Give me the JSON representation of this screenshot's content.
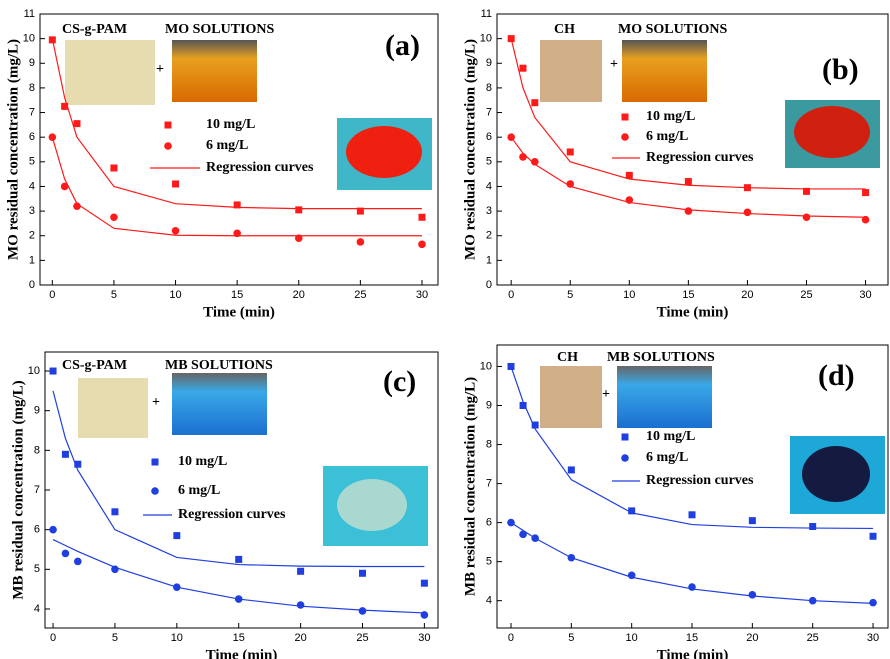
{
  "chart_data": [
    {
      "type": "scatter",
      "x": [
        0,
        1,
        2,
        5,
        10,
        15,
        20,
        25,
        30
      ],
      "xlim": [
        -1,
        31.3
      ],
      "xticks": [
        0,
        5,
        10,
        15,
        20,
        25,
        30
      ],
      "ylim": [
        0,
        11
      ],
      "yticks": [
        0,
        1,
        2,
        3,
        4,
        5,
        6,
        7,
        8,
        9,
        10,
        11
      ],
      "x_label": "Time (min)",
      "y_label": "MO residual concentration (mg/L)",
      "panel_label": "(a)",
      "annotations": [
        "CS-g-PAM",
        "MO SOLUTIONS",
        "+"
      ],
      "series": [
        {
          "name": "10 mg/L",
          "color": "#ff1a1a",
          "marker": "square",
          "values": [
            9.95,
            7.25,
            6.55,
            4.75,
            4.1,
            3.25,
            3.05,
            3.0,
            2.75
          ]
        },
        {
          "name": "6 mg/L",
          "color": "#ff1a1a",
          "marker": "circle",
          "values": [
            6.0,
            4.0,
            3.2,
            2.75,
            2.2,
            2.1,
            1.9,
            1.75,
            1.65
          ]
        },
        {
          "name": "Regression curves",
          "color": "#ff1a1a",
          "marker": "line",
          "curves": [
            [
              10,
              7.6,
              6.0,
              4.0,
              3.3,
              3.15,
              3.1,
              3.1,
              3.1
            ],
            [
              6,
              4.3,
              3.3,
              2.3,
              2.02,
              2.0,
              2.0,
              2.0,
              2.0
            ]
          ]
        }
      ]
    },
    {
      "type": "scatter",
      "x": [
        0,
        1,
        2,
        5,
        10,
        15,
        20,
        25,
        30
      ],
      "xlim": [
        -1.2,
        31.9
      ],
      "xticks": [
        0,
        5,
        10,
        15,
        20,
        25,
        30
      ],
      "ylim": [
        0,
        11
      ],
      "yticks": [
        0,
        1,
        2,
        3,
        4,
        5,
        6,
        7,
        8,
        9,
        10,
        11
      ],
      "x_label": "Time (min)",
      "y_label": "MO residual concentration (mg/L)",
      "panel_label": "(b)",
      "annotations": [
        "CH",
        "MO SOLUTIONS",
        "+"
      ],
      "series": [
        {
          "name": "10 mg/L",
          "color": "#ff1a1a",
          "marker": "square",
          "values": [
            10,
            8.8,
            7.4,
            5.4,
            4.45,
            4.2,
            3.95,
            3.8,
            3.75
          ]
        },
        {
          "name": "6 mg/L",
          "color": "#ff1a1a",
          "marker": "circle",
          "values": [
            6.0,
            5.2,
            5.0,
            4.1,
            3.45,
            3.0,
            2.95,
            2.75,
            2.65
          ]
        },
        {
          "name": "Regression curves",
          "color": "#ff1a1a",
          "marker": "line",
          "curves": [
            [
              10,
              8.0,
              6.8,
              5.0,
              4.3,
              4.05,
              3.95,
              3.9,
              3.9
            ],
            [
              6,
              5.35,
              4.9,
              4.0,
              3.35,
              3.05,
              2.9,
              2.8,
              2.75
            ]
          ]
        }
      ]
    },
    {
      "type": "scatter",
      "x": [
        0,
        1,
        2,
        5,
        10,
        15,
        20,
        25,
        30
      ],
      "xlim": [
        -0.65,
        31.1
      ],
      "xticks": [
        0,
        5,
        10,
        15,
        20,
        25,
        30
      ],
      "ylim": [
        3.52,
        10.48
      ],
      "yticks": [
        4,
        5,
        6,
        7,
        8,
        9,
        10
      ],
      "x_label": "Time (min)",
      "y_label": "MB residual concentration (mg/L)",
      "panel_label": "(c)",
      "annotations": [
        "CS-g-PAM",
        "MB SOLUTIONS",
        "+"
      ],
      "series": [
        {
          "name": "10 mg/L",
          "color": "#1f3fe0",
          "marker": "square",
          "values": [
            10,
            7.9,
            7.65,
            6.45,
            5.85,
            5.25,
            4.95,
            4.9,
            4.65
          ]
        },
        {
          "name": "6 mg/L",
          "color": "#1f3fe0",
          "marker": "circle",
          "values": [
            6.0,
            5.4,
            5.2,
            5.0,
            4.55,
            4.25,
            4.1,
            3.95,
            3.85
          ]
        },
        {
          "name": "Regression curves",
          "color": "#1f3fe0",
          "marker": "line",
          "curves": [
            [
              9.5,
              8.3,
              7.5,
              6.0,
              5.3,
              5.12,
              5.08,
              5.07,
              5.07
            ],
            [
              5.75,
              5.6,
              5.45,
              5.05,
              4.55,
              4.25,
              4.07,
              3.97,
              3.9
            ]
          ]
        }
      ]
    },
    {
      "type": "scatter",
      "x": [
        0,
        1,
        2,
        5,
        10,
        15,
        20,
        25,
        30
      ],
      "xlim": [
        -1.16,
        31.24
      ],
      "xticks": [
        0,
        5,
        10,
        15,
        20,
        25,
        30
      ],
      "ylim": [
        3.3,
        10.55
      ],
      "yticks": [
        4,
        5,
        6,
        7,
        8,
        9,
        10
      ],
      "x_label": "Time (min)",
      "y_label": "MB residual concentration (mg/L)",
      "panel_label": "(d)",
      "annotations": [
        "CH",
        "MB SOLUTIONS",
        "+"
      ],
      "series": [
        {
          "name": "10 mg/L",
          "color": "#1f3fe0",
          "marker": "square",
          "values": [
            10,
            9.0,
            8.5,
            7.35,
            6.3,
            6.2,
            6.05,
            5.9,
            5.65
          ]
        },
        {
          "name": "6 mg/L",
          "color": "#1f3fe0",
          "marker": "circle",
          "values": [
            6.0,
            5.7,
            5.6,
            5.1,
            4.65,
            4.35,
            4.15,
            4.0,
            3.95
          ]
        },
        {
          "name": "Regression curves",
          "color": "#1f3fe0",
          "marker": "line",
          "curves": [
            [
              10,
              9.1,
              8.4,
              7.1,
              6.25,
              5.95,
              5.88,
              5.86,
              5.85
            ],
            [
              6,
              5.8,
              5.6,
              5.1,
              4.6,
              4.3,
              4.12,
              4.0,
              3.93
            ]
          ]
        }
      ]
    }
  ]
}
